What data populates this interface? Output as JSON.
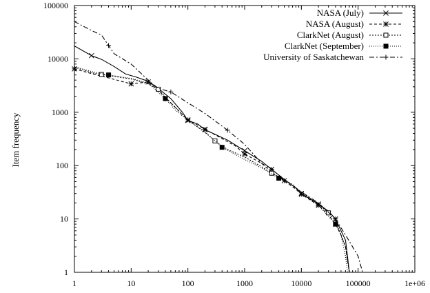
{
  "chart_data": {
    "type": "line",
    "x_scale": "log",
    "y_scale": "log",
    "xlim": [
      1,
      1000000
    ],
    "ylim": [
      1,
      100000
    ],
    "ylabel": "Item frequency",
    "xlabel": "",
    "x_ticks": [
      "1",
      "10",
      "100",
      "1000",
      "10000",
      "100000",
      "1e+06"
    ],
    "y_ticks": [
      "1",
      "10",
      "100",
      "1000",
      "10000",
      "100000"
    ],
    "legend_position": "top-right",
    "grid": false,
    "series": [
      {
        "name": "NASA (July)",
        "dash": "solid",
        "marker": "x",
        "points": [
          [
            1,
            17500
          ],
          [
            2,
            11500
          ],
          [
            3,
            9800
          ],
          [
            5,
            7200
          ],
          [
            8,
            5200
          ],
          [
            12,
            4600
          ],
          [
            20,
            3800
          ],
          [
            30,
            2800
          ],
          [
            50,
            1800
          ],
          [
            80,
            1000
          ],
          [
            100,
            700
          ],
          [
            150,
            600
          ],
          [
            200,
            470
          ],
          [
            500,
            300
          ],
          [
            1000,
            190
          ],
          [
            2000,
            120
          ],
          [
            3000,
            85
          ],
          [
            5000,
            55
          ],
          [
            8000,
            38
          ],
          [
            10000,
            30
          ],
          [
            20000,
            19
          ],
          [
            30000,
            14
          ],
          [
            40000,
            10
          ],
          [
            50000,
            6
          ],
          [
            60000,
            4
          ],
          [
            65000,
            2
          ],
          [
            70000,
            1
          ]
        ],
        "marker_x": [
          2,
          100,
          200,
          1000,
          3000,
          10000,
          20000,
          40000
        ]
      },
      {
        "name": "NASA (August)",
        "dash": "4,3",
        "marker": "star",
        "points": [
          [
            1,
            6500
          ],
          [
            2,
            5300
          ],
          [
            4,
            4400
          ],
          [
            10,
            3400
          ],
          [
            20,
            3700
          ],
          [
            30,
            2600
          ],
          [
            50,
            1500
          ],
          [
            80,
            900
          ],
          [
            100,
            720
          ],
          [
            150,
            570
          ],
          [
            200,
            480
          ],
          [
            400,
            320
          ],
          [
            700,
            230
          ],
          [
            1000,
            165
          ],
          [
            2000,
            110
          ],
          [
            3000,
            75
          ],
          [
            5000,
            52
          ],
          [
            8000,
            36
          ],
          [
            10000,
            29
          ],
          [
            20000,
            18
          ],
          [
            30000,
            12
          ],
          [
            40000,
            8
          ],
          [
            50000,
            5
          ],
          [
            60000,
            3
          ],
          [
            70000,
            1
          ]
        ],
        "marker_x": [
          1,
          10,
          20,
          100,
          200,
          1000,
          5000,
          10000,
          20000,
          40000
        ]
      },
      {
        "name": "ClarkNet (August)",
        "dash": "2,2",
        "marker": "open-square",
        "points": [
          [
            1,
            7000
          ],
          [
            2,
            5500
          ],
          [
            3,
            5100
          ],
          [
            5,
            4700
          ],
          [
            10,
            4200
          ],
          [
            20,
            3400
          ],
          [
            30,
            2700
          ],
          [
            50,
            1500
          ],
          [
            100,
            720
          ],
          [
            200,
            420
          ],
          [
            300,
            290
          ],
          [
            500,
            200
          ],
          [
            1000,
            145
          ],
          [
            2000,
            95
          ],
          [
            3000,
            72
          ],
          [
            5000,
            55
          ],
          [
            10000,
            32
          ],
          [
            20000,
            19
          ],
          [
            30000,
            13
          ],
          [
            40000,
            9
          ],
          [
            50000,
            5
          ],
          [
            60000,
            3
          ],
          [
            70000,
            1
          ]
        ],
        "marker_x": [
          3,
          30,
          300,
          3000,
          30000
        ]
      },
      {
        "name": "ClarkNet (September)",
        "dash": "1,2",
        "marker": "filled-square",
        "points": [
          [
            1,
            7200
          ],
          [
            2,
            5800
          ],
          [
            4,
            5000
          ],
          [
            10,
            4300
          ],
          [
            20,
            3500
          ],
          [
            40,
            1800
          ],
          [
            60,
            1100
          ],
          [
            100,
            700
          ],
          [
            200,
            430
          ],
          [
            400,
            220
          ],
          [
            700,
            160
          ],
          [
            1000,
            130
          ],
          [
            2000,
            90
          ],
          [
            4000,
            58
          ],
          [
            7000,
            45
          ],
          [
            10000,
            30
          ],
          [
            20000,
            18
          ],
          [
            40000,
            8
          ],
          [
            50000,
            5
          ],
          [
            60000,
            2
          ],
          [
            65000,
            1
          ]
        ],
        "marker_x": [
          4,
          40,
          400,
          4000,
          40000
        ]
      },
      {
        "name": "University of Saskatchewan",
        "dash": "7,3,2,3",
        "marker": "plus",
        "points": [
          [
            1,
            50000
          ],
          [
            2,
            34000
          ],
          [
            3,
            28000
          ],
          [
            5,
            12500
          ],
          [
            10,
            8000
          ],
          [
            20,
            4000
          ],
          [
            30,
            2800
          ],
          [
            50,
            2400
          ],
          [
            100,
            1500
          ],
          [
            200,
            950
          ],
          [
            500,
            460
          ],
          [
            1000,
            250
          ],
          [
            2000,
            110
          ],
          [
            3000,
            85
          ],
          [
            5000,
            55
          ],
          [
            10000,
            32
          ],
          [
            20000,
            20
          ],
          [
            40000,
            10
          ],
          [
            60000,
            5
          ],
          [
            80000,
            3
          ],
          [
            100000,
            2
          ],
          [
            120000,
            1
          ]
        ],
        "marker_x": [
          4,
          50,
          500,
          3000,
          40000
        ]
      }
    ]
  }
}
